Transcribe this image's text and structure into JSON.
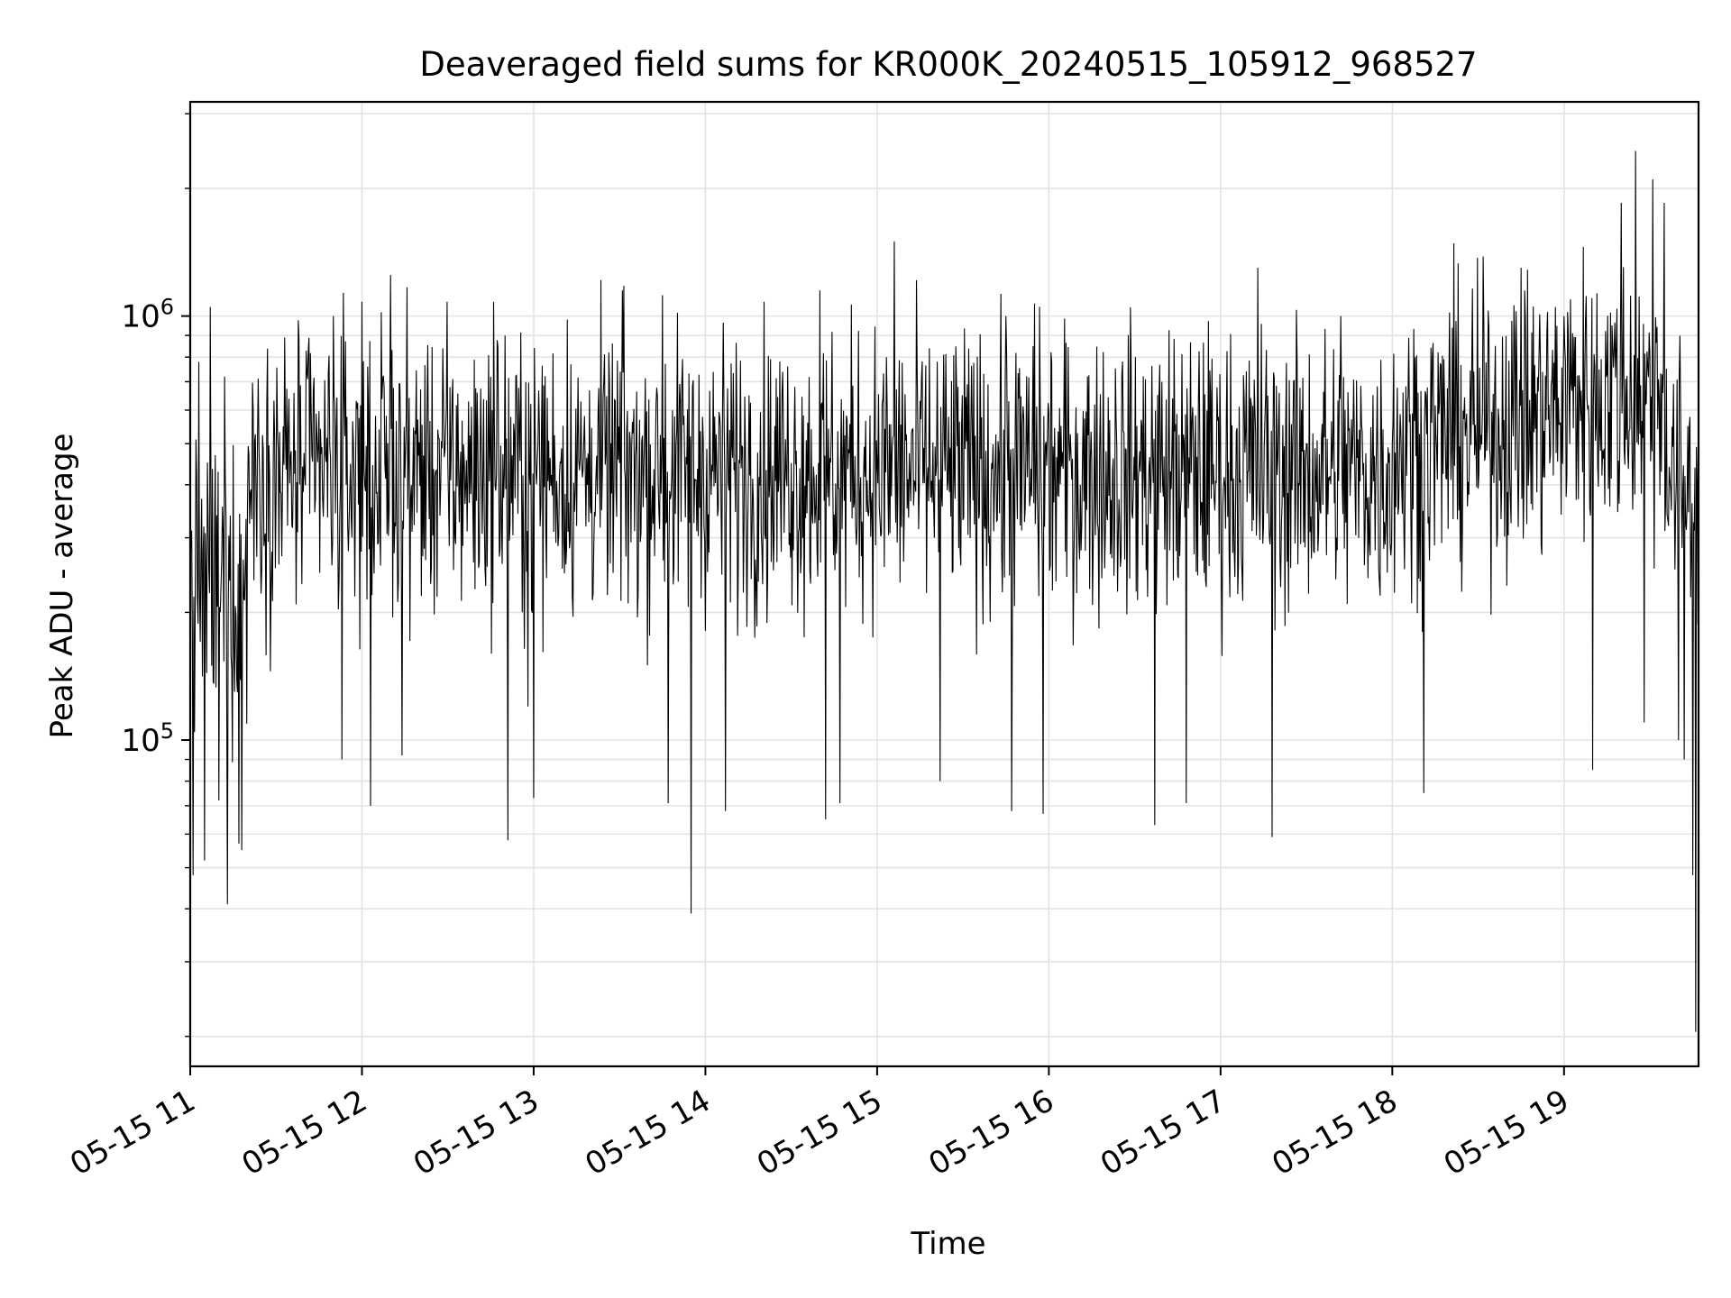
{
  "chart_data": {
    "type": "line",
    "title": "Deaveraged field sums for KR000K_20240515_105912_968527",
    "xlabel": "Time",
    "ylabel": "Peak ADU - average",
    "x_scale": "time",
    "y_scale": "log",
    "xlim": [
      "2024-05-15 11:00",
      "2024-05-15 19:47"
    ],
    "ylim": [
      17000,
      3200000
    ],
    "x_ticks": [
      "05-15 11",
      "05-15 12",
      "05-15 13",
      "05-15 14",
      "05-15 15",
      "05-15 16",
      "05-15 17",
      "05-15 18",
      "05-15 19"
    ],
    "y_ticks": [
      {
        "value": 100000,
        "base": "10",
        "exp": "5"
      },
      {
        "value": 1000000,
        "base": "10",
        "exp": "6"
      }
    ],
    "grid": true,
    "line_color": "#000000",
    "grid_color": "#e3e3e3",
    "series": [
      {
        "values": [
          [
            "2024-05-15 11:00",
            250000
          ],
          [
            "2024-05-15 11:01",
            48000
          ],
          [
            "2024-05-15 11:03",
            780000
          ],
          [
            "2024-05-15 11:05",
            52000
          ],
          [
            "2024-05-15 11:07",
            1050000
          ],
          [
            "2024-05-15 11:10",
            72000
          ],
          [
            "2024-05-15 11:12",
            720000
          ],
          [
            "2024-05-15 11:13",
            41000
          ],
          [
            "2024-05-15 11:17",
            57000
          ],
          [
            "2024-05-15 11:18",
            55000
          ],
          [
            "2024-05-15 11:20",
            350000
          ],
          [
            "2024-05-15 11:40",
            420000
          ],
          [
            "2024-05-15 11:50",
            1000000
          ],
          [
            "2024-05-15 11:53",
            90000
          ],
          [
            "2024-05-15 12:00",
            1080000
          ],
          [
            "2024-05-15 12:03",
            70000
          ],
          [
            "2024-05-15 12:10",
            1250000
          ],
          [
            "2024-05-15 12:14",
            92000
          ],
          [
            "2024-05-15 12:30",
            450000
          ],
          [
            "2024-05-15 12:46",
            1080000
          ],
          [
            "2024-05-15 12:51",
            58000
          ],
          [
            "2024-05-15 12:58",
            120000
          ],
          [
            "2024-05-15 13:00",
            73000
          ],
          [
            "2024-05-15 13:30",
            450000
          ],
          [
            "2024-05-15 13:31",
            1150000
          ],
          [
            "2024-05-15 13:45",
            1120000
          ],
          [
            "2024-05-15 13:47",
            71000
          ],
          [
            "2024-05-15 13:55",
            39000
          ],
          [
            "2024-05-15 14:07",
            68000
          ],
          [
            "2024-05-15 14:30",
            450000
          ],
          [
            "2024-05-15 14:40",
            1150000
          ],
          [
            "2024-05-15 14:42",
            65000
          ],
          [
            "2024-05-15 14:47",
            71000
          ],
          [
            "2024-05-15 15:00",
            450000
          ],
          [
            "2024-05-15 15:06",
            1500000
          ],
          [
            "2024-05-15 15:22",
            80000
          ],
          [
            "2024-05-15 15:40",
            450000
          ],
          [
            "2024-05-15 15:45",
            1000000
          ],
          [
            "2024-05-15 15:47",
            68000
          ],
          [
            "2024-05-15 15:55",
            1070000
          ],
          [
            "2024-05-15 15:58",
            67000
          ],
          [
            "2024-05-15 16:15",
            450000
          ],
          [
            "2024-05-15 16:37",
            63000
          ],
          [
            "2024-05-15 16:48",
            71000
          ],
          [
            "2024-05-15 17:00",
            500000
          ],
          [
            "2024-05-15 17:13",
            1300000
          ],
          [
            "2024-05-15 17:18",
            59000
          ],
          [
            "2024-05-15 17:30",
            500000
          ],
          [
            "2024-05-15 17:42",
            1000000
          ],
          [
            "2024-05-15 17:50",
            450000
          ],
          [
            "2024-05-15 18:00",
            500000
          ],
          [
            "2024-05-15 18:11",
            75000
          ],
          [
            "2024-05-15 18:20",
            1020000
          ],
          [
            "2024-05-15 18:45",
            1300000
          ],
          [
            "2024-05-15 19:00",
            1000000
          ],
          [
            "2024-05-15 19:10",
            85000
          ],
          [
            "2024-05-15 19:20",
            1850000
          ],
          [
            "2024-05-15 19:25",
            2450000
          ],
          [
            "2024-05-15 19:28",
            110000
          ],
          [
            "2024-05-15 19:31",
            2100000
          ],
          [
            "2024-05-15 19:35",
            1850000
          ],
          [
            "2024-05-15 19:40",
            100000
          ],
          [
            "2024-05-15 19:42",
            90000
          ],
          [
            "2024-05-15 19:45",
            48000
          ],
          [
            "2024-05-15 19:46",
            20500
          ],
          [
            "2024-05-15 19:47",
            550000
          ]
        ]
      }
    ]
  }
}
